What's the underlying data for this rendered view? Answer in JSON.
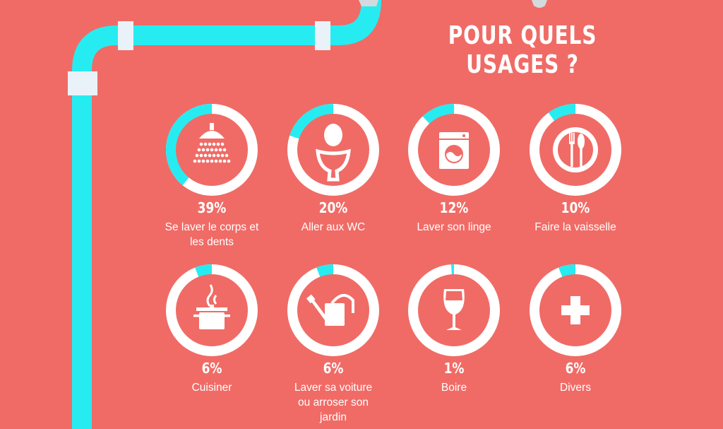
{
  "title": "POUR QUELS USAGES ?",
  "colors": {
    "background": "#f06b66",
    "accent": "#26ecf2",
    "ring": "#ffffff",
    "pipe_joint": "#e9f2f8"
  },
  "chart_data": {
    "type": "pie",
    "title": "POUR QUELS USAGES ?",
    "unit": "%",
    "items": [
      {
        "label": "Se laver le corps et les dents",
        "value": 39,
        "value_label": "39%",
        "icon": "shower-icon"
      },
      {
        "label": "Aller aux WC",
        "value": 20,
        "value_label": "20%",
        "icon": "toilet-icon"
      },
      {
        "label": "Laver son linge",
        "value": 12,
        "value_label": "12%",
        "icon": "washing-machine-icon"
      },
      {
        "label": "Faire la vaisselle",
        "value": 10,
        "value_label": "10%",
        "icon": "plate-cutlery-icon"
      },
      {
        "label": "Cuisiner",
        "value": 6,
        "value_label": "6%",
        "icon": "cooking-pot-icon"
      },
      {
        "label": "Laver sa voiture ou arroser son jardin",
        "value": 6,
        "value_label": "6%",
        "icon": "watering-can-icon"
      },
      {
        "label": "Boire",
        "value": 1,
        "value_label": "1%",
        "icon": "wine-glass-icon"
      },
      {
        "label": "Divers",
        "value": 6,
        "value_label": "6%",
        "icon": "cross-icon"
      }
    ]
  }
}
